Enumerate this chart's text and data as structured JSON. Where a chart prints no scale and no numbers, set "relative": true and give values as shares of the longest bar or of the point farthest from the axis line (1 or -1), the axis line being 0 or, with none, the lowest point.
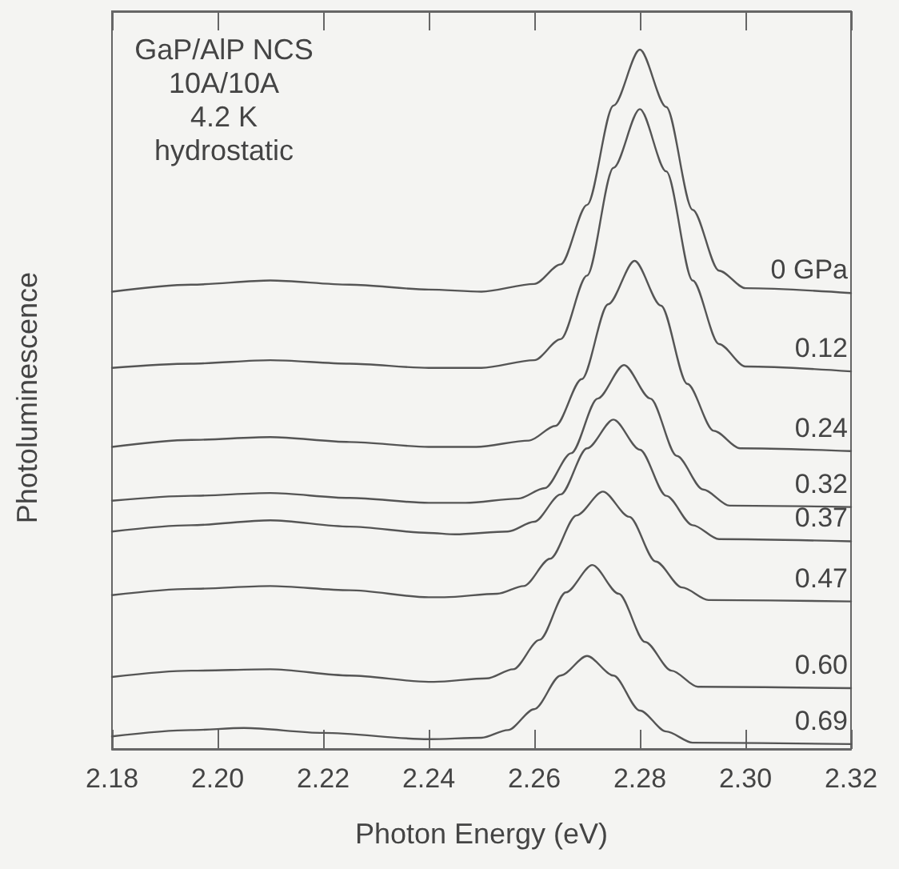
{
  "chart_data": {
    "type": "line",
    "relative": true,
    "xlabel": "Photon Energy (eV)",
    "ylabel": "Photoluminescence",
    "annotations": [
      "GaP/AlP NCS",
      "10A/10A",
      "4.2 K",
      "hydrostatic"
    ],
    "xlim": [
      2.18,
      2.32
    ],
    "xticks": [
      2.18,
      {
        "value": 2.2,
        "label": "2.20"
      },
      2.22,
      2.24,
      2.26,
      2.28,
      {
        "value": 2.3,
        "label": "2.30"
      },
      2.32
    ],
    "grid": false,
    "legend": false,
    "marker": "none",
    "line_style": "solid",
    "series": [
      {
        "name": "0 GPa",
        "color": "#555555",
        "x": [
          2.18,
          2.195,
          2.21,
          2.225,
          2.24,
          2.25,
          2.26,
          2.265,
          2.27,
          2.275,
          2.28,
          2.285,
          2.29,
          2.295,
          2.3,
          2.32
        ],
        "values": [
          0.654,
          0.664,
          0.67,
          0.664,
          0.657,
          0.654,
          0.665,
          0.693,
          0.778,
          0.92,
          1,
          0.918,
          0.771,
          0.684,
          0.659,
          0.652
        ]
      },
      {
        "name": "0.12",
        "color": "#555555",
        "x": [
          2.18,
          2.195,
          2.21,
          2.225,
          2.24,
          2.25,
          2.26,
          2.265,
          2.27,
          2.275,
          2.28,
          2.285,
          2.29,
          2.295,
          2.3,
          2.32
        ],
        "values": [
          0.545,
          0.551,
          0.556,
          0.551,
          0.545,
          0.545,
          0.556,
          0.586,
          0.677,
          0.831,
          0.915,
          0.826,
          0.67,
          0.579,
          0.547,
          0.54
        ]
      },
      {
        "name": "0.24",
        "color": "#555555",
        "x": [
          2.18,
          2.195,
          2.21,
          2.225,
          2.24,
          2.249,
          2.259,
          2.264,
          2.269,
          2.274,
          2.279,
          2.284,
          2.289,
          2.294,
          2.299,
          2.32
        ],
        "values": [
          0.432,
          0.442,
          0.446,
          0.439,
          0.432,
          0.432,
          0.441,
          0.462,
          0.529,
          0.636,
          0.698,
          0.634,
          0.522,
          0.455,
          0.43,
          0.426
        ]
      },
      {
        "name": "0.32",
        "color": "#555555",
        "x": [
          2.18,
          2.195,
          2.21,
          2.225,
          2.24,
          2.247,
          2.257,
          2.262,
          2.267,
          2.272,
          2.277,
          2.282,
          2.287,
          2.292,
          2.297,
          2.32
        ],
        "values": [
          0.355,
          0.362,
          0.366,
          0.359,
          0.352,
          0.352,
          0.358,
          0.373,
          0.423,
          0.501,
          0.549,
          0.501,
          0.419,
          0.371,
          0.348,
          0.346
        ]
      },
      {
        "name": "0.37",
        "color": "#555555",
        "x": [
          2.18,
          2.195,
          2.21,
          2.225,
          2.24,
          2.245,
          2.255,
          2.26,
          2.265,
          2.27,
          2.275,
          2.28,
          2.285,
          2.29,
          2.295,
          2.32
        ],
        "values": [
          0.311,
          0.32,
          0.327,
          0.318,
          0.309,
          0.307,
          0.311,
          0.325,
          0.364,
          0.43,
          0.471,
          0.428,
          0.362,
          0.32,
          0.3,
          0.297
        ]
      },
      {
        "name": "0.47",
        "color": "#555555",
        "x": [
          2.18,
          2.195,
          2.21,
          2.225,
          2.24,
          2.243,
          2.253,
          2.258,
          2.263,
          2.268,
          2.273,
          2.278,
          2.283,
          2.288,
          2.293,
          2.32
        ],
        "values": [
          0.22,
          0.229,
          0.233,
          0.227,
          0.217,
          0.217,
          0.222,
          0.233,
          0.272,
          0.334,
          0.368,
          0.332,
          0.268,
          0.231,
          0.213,
          0.211
        ]
      },
      {
        "name": "0.60",
        "color": "#555555",
        "x": [
          2.18,
          2.195,
          2.21,
          2.225,
          2.24,
          2.241,
          2.251,
          2.256,
          2.261,
          2.266,
          2.271,
          2.276,
          2.281,
          2.286,
          2.291,
          2.32
        ],
        "values": [
          0.103,
          0.112,
          0.114,
          0.105,
          0.096,
          0.096,
          0.101,
          0.114,
          0.156,
          0.224,
          0.263,
          0.222,
          0.153,
          0.112,
          0.089,
          0.087
        ]
      },
      {
        "name": "0.69",
        "color": "#555555",
        "x": [
          2.18,
          2.195,
          2.205,
          2.22,
          2.24,
          2.25,
          2.255,
          2.26,
          2.265,
          2.27,
          2.275,
          2.28,
          2.285,
          2.29,
          2.32
        ],
        "values": [
          0.018,
          0.027,
          0.03,
          0.023,
          0.014,
          0.016,
          0.027,
          0.057,
          0.105,
          0.133,
          0.105,
          0.055,
          0.025,
          0.009,
          0.007
        ]
      }
    ]
  }
}
